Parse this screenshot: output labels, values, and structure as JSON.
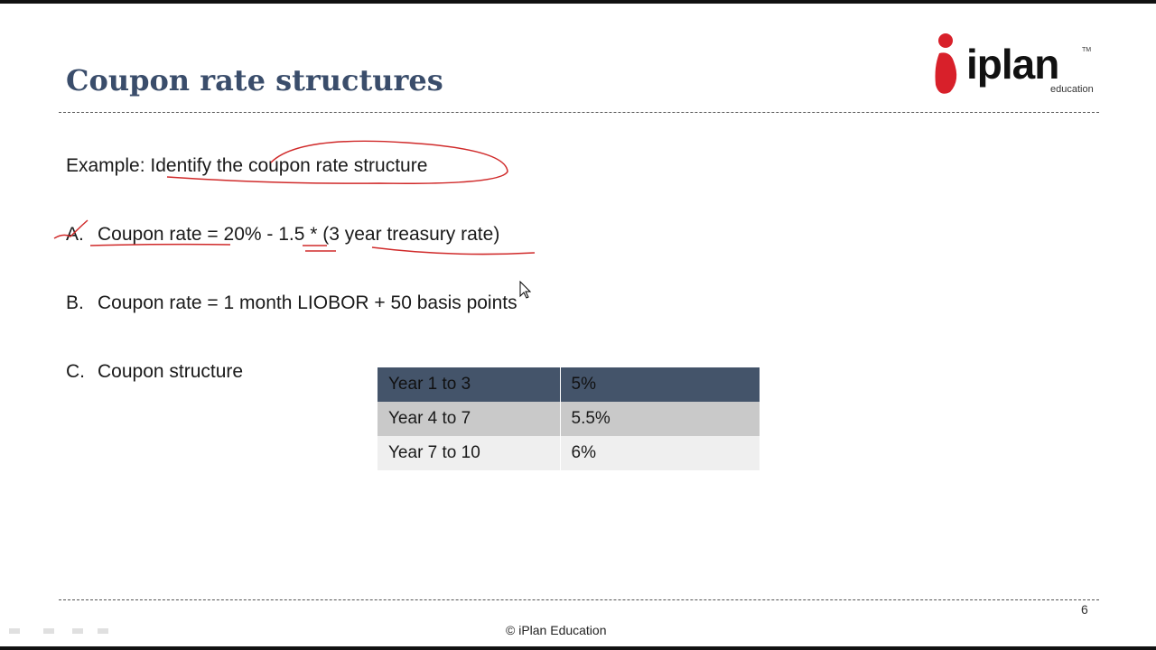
{
  "header": {
    "title": "Coupon rate structures"
  },
  "logo": {
    "name": "iplan",
    "tagline": "education",
    "mark": "TM"
  },
  "body": {
    "prompt": "Example: Identify the coupon rate structure",
    "items": [
      {
        "label": "A.",
        "text": "Coupon rate = 20% - 1.5 * (3 year treasury rate)"
      },
      {
        "label": "B.",
        "text": "Coupon rate = 1 month LIOBOR + 50 basis points"
      },
      {
        "label": "C.",
        "text": "Coupon structure"
      }
    ]
  },
  "table": {
    "rows": [
      [
        "Year 1 to 3",
        "5%"
      ],
      [
        "Year 4 to 7",
        "5.5%"
      ],
      [
        "Year 7 to 10",
        "6%"
      ]
    ]
  },
  "footer": {
    "page": "6",
    "copyright": "© iPlan Education"
  }
}
